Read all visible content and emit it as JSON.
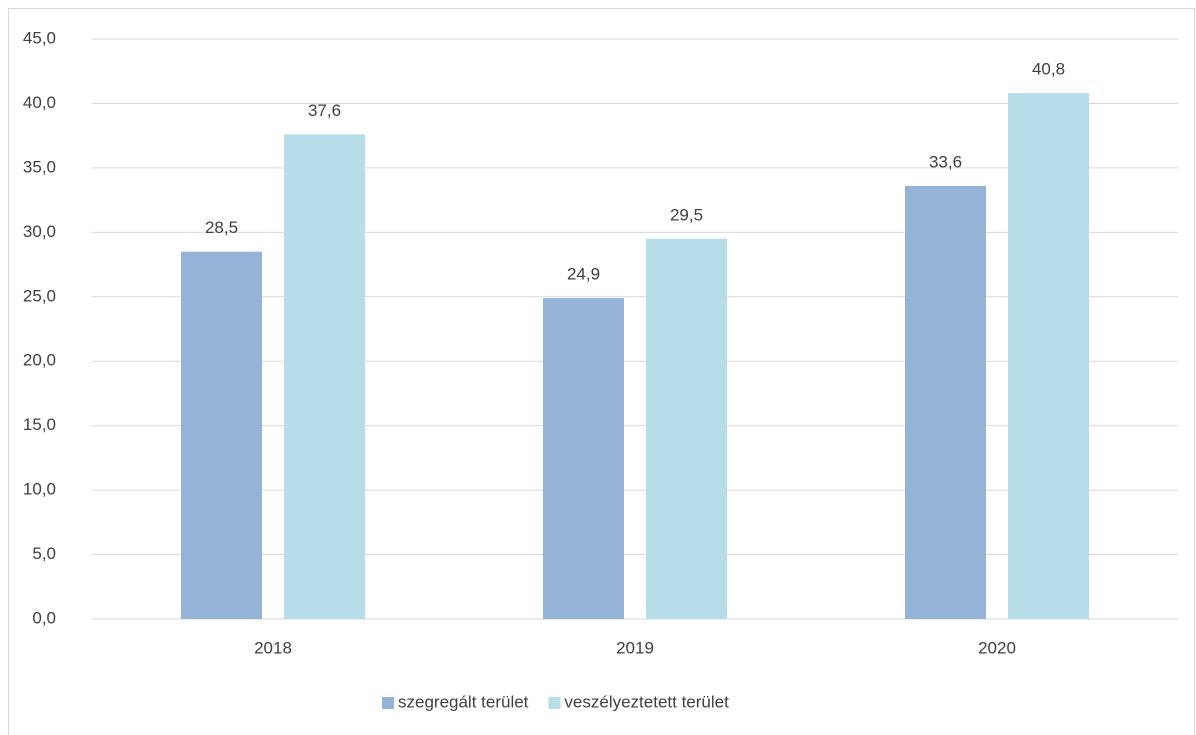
{
  "chart_data": {
    "type": "bar",
    "categories": [
      "2018",
      "2019",
      "2020"
    ],
    "series": [
      {
        "name": "szegregált terület",
        "color": "#95b3d7",
        "values": [
          28.5,
          24.9,
          33.6
        ],
        "value_labels": [
          "28,5",
          "24,9",
          "33,6"
        ]
      },
      {
        "name": "veszélyeztetett terület",
        "color": "#b7dde8",
        "values": [
          37.6,
          29.5,
          40.8
        ],
        "value_labels": [
          "37,6",
          "29,5",
          "40,8"
        ]
      }
    ],
    "ylim": [
      0,
      45
    ],
    "yticks": [
      {
        "value": 0,
        "label": "0,0"
      },
      {
        "value": 5,
        "label": "5,0"
      },
      {
        "value": 10,
        "label": "10,0"
      },
      {
        "value": 15,
        "label": "15,0"
      },
      {
        "value": 20,
        "label": "20,0"
      },
      {
        "value": 25,
        "label": "25,0"
      },
      {
        "value": 30,
        "label": "30,0"
      },
      {
        "value": 35,
        "label": "35,0"
      },
      {
        "value": 40,
        "label": "40,0"
      },
      {
        "value": 45,
        "label": "45,0"
      }
    ],
    "grid": true,
    "legend": "bottom"
  }
}
